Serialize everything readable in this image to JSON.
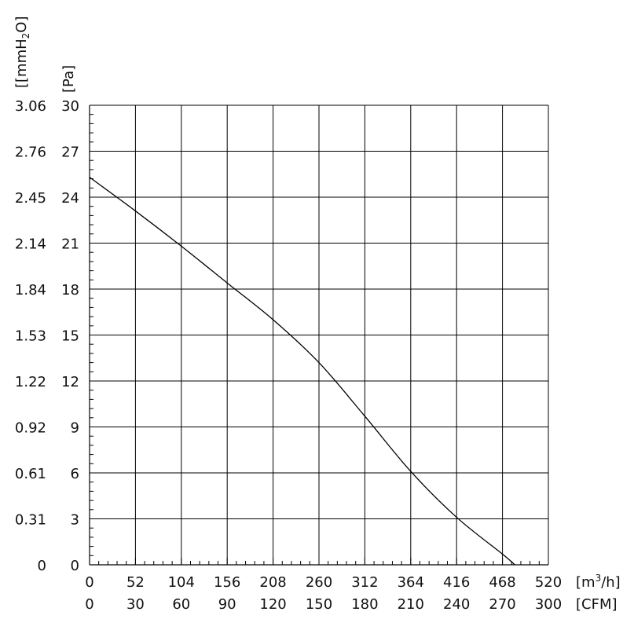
{
  "chart_data": {
    "type": "line",
    "title": "",
    "x_primary": {
      "unit_label": "[m³/h]",
      "ticks": [
        0,
        52,
        104,
        156,
        208,
        260,
        312,
        364,
        416,
        468,
        520
      ],
      "range": [
        0,
        520
      ]
    },
    "x_secondary": {
      "unit_label": "[CFM]",
      "ticks": [
        0,
        30,
        60,
        90,
        120,
        150,
        180,
        210,
        240,
        270,
        300
      ],
      "range": [
        0,
        300
      ]
    },
    "y_primary": {
      "unit_label": "[Pa]",
      "ticks": [
        0,
        3,
        6,
        9,
        12,
        15,
        18,
        21,
        24,
        27,
        30
      ],
      "range": [
        0,
        30
      ]
    },
    "y_secondary": {
      "unit_label": "[[mmH2O]",
      "ticks": [
        "0",
        "0.31",
        "0.61",
        "0.92",
        "1.22",
        "1.53",
        "1.84",
        "2.14",
        "2.45",
        "2.76",
        "3.06"
      ]
    },
    "grid": true,
    "series": [
      {
        "x_units": "m³/h",
        "y_units": "Pa",
        "points": [
          [
            0,
            25.3
          ],
          [
            52,
            23.1
          ],
          [
            104,
            20.8
          ],
          [
            156,
            18.4
          ],
          [
            208,
            16.0
          ],
          [
            260,
            13.2
          ],
          [
            312,
            9.7
          ],
          [
            364,
            6.1
          ],
          [
            416,
            3.1
          ],
          [
            468,
            0.7
          ],
          [
            482,
            0
          ]
        ]
      }
    ]
  }
}
